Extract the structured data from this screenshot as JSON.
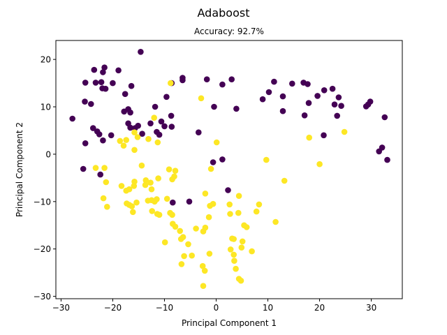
{
  "chart_data": {
    "type": "scatter",
    "title": "Adaboost",
    "subtitle": "Accuracy: 92.7%",
    "xlabel": "Principal Component 1",
    "ylabel": "Principal Component 2",
    "xlim": [
      -31,
      36
    ],
    "ylim": [
      -30.5,
      24
    ],
    "xticks": [
      -30,
      -20,
      -10,
      0,
      10,
      20,
      30
    ],
    "yticks": [
      -30,
      -20,
      -10,
      0,
      10,
      20
    ],
    "xtick_labels": [
      "−30",
      "−20",
      "−10",
      "0",
      "10",
      "20",
      "30"
    ],
    "ytick_labels": [
      "−30",
      "−20",
      "−10",
      "0",
      "10",
      "20"
    ],
    "grid": false,
    "colors": {
      "class_0": "#440154",
      "class_1": "#fde725"
    },
    "series": [
      {
        "class": 0,
        "points": [
          [
            -27.8,
            7.5
          ],
          [
            -25.3,
            15.1
          ],
          [
            -25.4,
            11.1
          ],
          [
            -24.2,
            10.6
          ],
          [
            -25.3,
            2.3
          ],
          [
            -25.7,
            -3.1
          ],
          [
            -23.6,
            17.8
          ],
          [
            -23.3,
            15.1
          ],
          [
            -22.2,
            15.2
          ],
          [
            -21.9,
            17.3
          ],
          [
            -21.6,
            18.3
          ],
          [
            -22.0,
            13.9
          ],
          [
            -21.4,
            13.8
          ],
          [
            -20.0,
            15.0
          ],
          [
            -18.9,
            17.7
          ],
          [
            -17.6,
            12.7
          ],
          [
            -16.4,
            14.4
          ],
          [
            -14.6,
            21.6
          ],
          [
            -23.8,
            5.5
          ],
          [
            -23.0,
            4.8
          ],
          [
            -22.6,
            4.2
          ],
          [
            -21.9,
            2.9
          ],
          [
            -20.3,
            4.0
          ],
          [
            -17.8,
            9.0
          ],
          [
            -17.0,
            9.5
          ],
          [
            -17.0,
            6.5
          ],
          [
            -16.6,
            8.8
          ],
          [
            -16.6,
            5.6
          ],
          [
            -15.1,
            6.0
          ],
          [
            -14.3,
            4.3
          ],
          [
            -15.7,
            5.5
          ],
          [
            -22.4,
            -4.3
          ],
          [
            -12.7,
            6.5
          ],
          [
            -11.8,
            10.0
          ],
          [
            -11.5,
            4.7
          ],
          [
            -11.0,
            4.1
          ],
          [
            -10.6,
            6.9
          ],
          [
            -10.0,
            5.9
          ],
          [
            -9.6,
            12.1
          ],
          [
            -8.7,
            8.1
          ],
          [
            -8.6,
            5.8
          ],
          [
            -8.6,
            15.0
          ],
          [
            -6.5,
            16.1
          ],
          [
            -6.5,
            15.6
          ],
          [
            -3.4,
            4.6
          ],
          [
            -1.8,
            15.8
          ],
          [
            1.2,
            14.7
          ],
          [
            -0.4,
            10.0
          ],
          [
            3.0,
            15.8
          ],
          [
            3.9,
            9.6
          ],
          [
            -0.6,
            -1.7
          ],
          [
            1.2,
            -1.1
          ],
          [
            2.3,
            -7.6
          ],
          [
            -8.4,
            -10.2
          ],
          [
            -5.2,
            -10.0
          ],
          [
            9.0,
            11.6
          ],
          [
            10.2,
            13.1
          ],
          [
            11.2,
            15.3
          ],
          [
            12.9,
            12.2
          ],
          [
            12.9,
            9.1
          ],
          [
            14.7,
            14.9
          ],
          [
            16.9,
            15.1
          ],
          [
            17.1,
            8.2
          ],
          [
            17.7,
            14.8
          ],
          [
            17.9,
            10.8
          ],
          [
            19.6,
            12.3
          ],
          [
            20.9,
            13.5
          ],
          [
            20.8,
            4.0
          ],
          [
            22.5,
            13.8
          ],
          [
            22.9,
            10.5
          ],
          [
            23.4,
            8.1
          ],
          [
            23.7,
            12.0
          ],
          [
            24.2,
            10.2
          ],
          [
            29.0,
            10.1
          ],
          [
            29.4,
            10.5
          ],
          [
            29.8,
            11.1
          ],
          [
            31.5,
            0.6
          ],
          [
            32.1,
            1.4
          ],
          [
            32.6,
            7.8
          ],
          [
            33.1,
            -1.2
          ]
        ]
      },
      {
        "class": 1,
        "points": [
          [
            -8.8,
            15.0
          ],
          [
            -12.0,
            7.7
          ],
          [
            -2.9,
            11.8
          ],
          [
            -15.2,
            3.6
          ],
          [
            -18.6,
            2.8
          ],
          [
            -17.4,
            3.0
          ],
          [
            -15.8,
            4.6
          ],
          [
            -15.8,
            0.9
          ],
          [
            -17.9,
            1.8
          ],
          [
            -13.1,
            3.2
          ],
          [
            -11.3,
            2.5
          ],
          [
            0.1,
            2.5
          ],
          [
            -23.3,
            -2.9
          ],
          [
            -21.6,
            -2.9
          ],
          [
            -21.3,
            -5.9
          ],
          [
            -14.4,
            -2.4
          ],
          [
            -15.8,
            -5.8
          ],
          [
            -18.3,
            -6.7
          ],
          [
            -17.4,
            -7.7
          ],
          [
            -16.8,
            -7.4
          ],
          [
            -15.9,
            -6.7
          ],
          [
            -13.6,
            -5.5
          ],
          [
            -13.7,
            -6.5
          ],
          [
            -12.7,
            -6.0
          ],
          [
            -12.5,
            -7.4
          ],
          [
            -11.2,
            -5.1
          ],
          [
            -9.1,
            -3.2
          ],
          [
            -7.9,
            -3.5
          ],
          [
            -8.5,
            -5.3
          ],
          [
            -8.1,
            -4.7
          ],
          [
            -1.0,
            -3.1
          ],
          [
            -2.1,
            -8.3
          ],
          [
            -17.3,
            -10.4
          ],
          [
            -16.8,
            -10.7
          ],
          [
            -16.1,
            -12.2
          ],
          [
            -15.4,
            -10.2
          ],
          [
            -16.3,
            -11.0
          ],
          [
            -21.8,
            -9.3
          ],
          [
            -21.1,
            -11.1
          ],
          [
            -13.2,
            -9.8
          ],
          [
            -12.5,
            -9.7
          ],
          [
            -12.4,
            -12.0
          ],
          [
            -11.9,
            -10.0
          ],
          [
            -11.5,
            -9.5
          ],
          [
            -11.0,
            -12.8
          ],
          [
            -11.4,
            -12.6
          ],
          [
            -9.5,
            -9.4
          ],
          [
            -8.9,
            -12.4
          ],
          [
            -8.5,
            -12.8
          ],
          [
            -8.4,
            -14.7
          ],
          [
            -7.9,
            -15.3
          ],
          [
            -7.0,
            -16.2
          ],
          [
            -6.8,
            -17.9
          ],
          [
            -6.4,
            -17.5
          ],
          [
            -5.4,
            -19.0
          ],
          [
            -6.2,
            -21.5
          ],
          [
            -4.7,
            -21.4
          ],
          [
            -3.9,
            -15.7
          ],
          [
            -2.5,
            -16.3
          ],
          [
            -2.1,
            -15.5
          ],
          [
            -1.4,
            -13.3
          ],
          [
            -1.2,
            -10.9
          ],
          [
            -0.6,
            -10.5
          ],
          [
            -1.3,
            -21.0
          ],
          [
            -2.6,
            -23.6
          ],
          [
            -2.2,
            -24.6
          ],
          [
            -2.5,
            -27.8
          ],
          [
            -9.9,
            -18.6
          ],
          [
            -6.7,
            -23.2
          ],
          [
            2.6,
            -10.6
          ],
          [
            2.7,
            -12.6
          ],
          [
            4.3,
            -12.4
          ],
          [
            4.4,
            -8.8
          ],
          [
            5.4,
            -15.0
          ],
          [
            5.9,
            -15.4
          ],
          [
            5.1,
            -18.4
          ],
          [
            4.9,
            -19.7
          ],
          [
            3.1,
            -17.8
          ],
          [
            3.4,
            -17.9
          ],
          [
            2.8,
            -20.1
          ],
          [
            3.4,
            -21.2
          ],
          [
            3.5,
            -22.5
          ],
          [
            3.8,
            -24.2
          ],
          [
            4.4,
            -26.3
          ],
          [
            4.8,
            -26.7
          ],
          [
            6.9,
            -20.5
          ],
          [
            7.8,
            -12.1
          ],
          [
            8.3,
            -10.6
          ],
          [
            9.7,
            -1.2
          ],
          [
            11.5,
            -14.3
          ],
          [
            13.2,
            -5.6
          ],
          [
            18.0,
            3.5
          ],
          [
            20.0,
            -2.1
          ],
          [
            24.8,
            4.7
          ]
        ]
      }
    ]
  }
}
